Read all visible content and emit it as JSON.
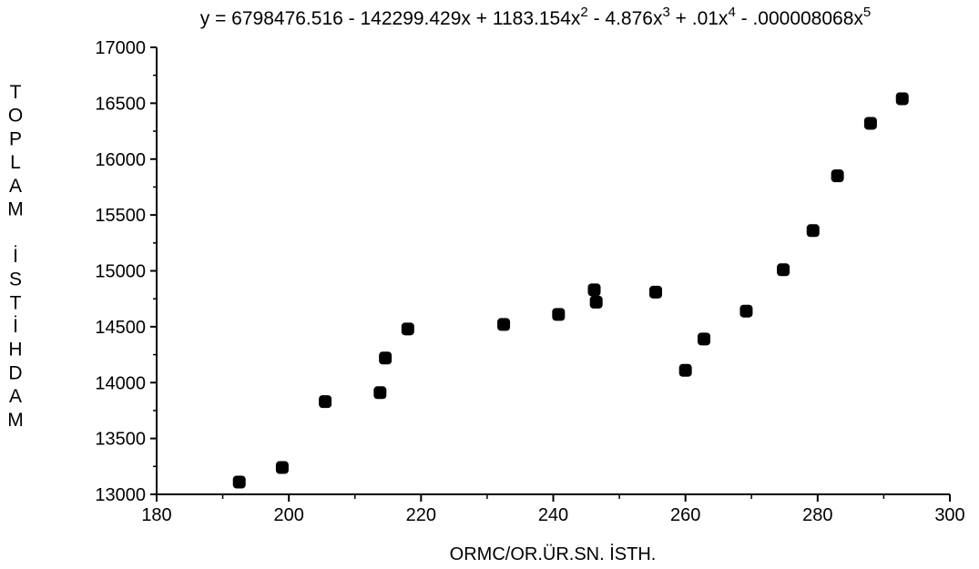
{
  "chart_data": {
    "type": "scatter",
    "title": "y = 6798476.516 - 142299.429x + 1183.154x2 - 4.876x3 + .01x4 - .000008068x5",
    "title_parts": {
      "main": "y = 6798476.516 - 142299.429x + 1183.154x",
      "p2": "2",
      "mid1": " - 4.876x",
      "p3": "3",
      "mid2": " + .01x",
      "p4": "4",
      "mid3": " - .000008068x",
      "p5": "5"
    },
    "xlabel": "ORMC/OR.ÜR.SN. İSTH.",
    "ylabel": "TOPLAM İSTİHDAM",
    "ylabel_chars": [
      "T",
      "O",
      "P",
      "L",
      "A",
      "M",
      "",
      "İ",
      "S",
      "T",
      "İ",
      "H",
      "D",
      "A",
      "M"
    ],
    "xlim": [
      180,
      300
    ],
    "ylim": [
      13000,
      17000
    ],
    "x_ticks": [
      "180",
      "200",
      "220",
      "240",
      "260",
      "280",
      "300"
    ],
    "y_ticks": [
      "13000",
      "13500",
      "14000",
      "14500",
      "15000",
      "15500",
      "16000",
      "16500",
      "17000"
    ],
    "fit": {
      "name": "",
      "type": "polynomial",
      "degree": 5,
      "x_range": [
        192,
        293
      ],
      "coefficients": [
        6798476.516,
        -142299.429,
        1183.154,
        -4.876,
        0.01,
        -8.068e-06
      ]
    },
    "points": [
      {
        "x": 192.5,
        "y": 13110
      },
      {
        "x": 199.0,
        "y": 13240
      },
      {
        "x": 205.5,
        "y": 13830
      },
      {
        "x": 213.8,
        "y": 13910
      },
      {
        "x": 214.6,
        "y": 14220
      },
      {
        "x": 218.0,
        "y": 14480
      },
      {
        "x": 232.5,
        "y": 14520
      },
      {
        "x": 240.8,
        "y": 14610
      },
      {
        "x": 246.2,
        "y": 14830
      },
      {
        "x": 246.5,
        "y": 14720
      },
      {
        "x": 255.5,
        "y": 14810
      },
      {
        "x": 260.0,
        "y": 14110
      },
      {
        "x": 262.8,
        "y": 14390
      },
      {
        "x": 269.2,
        "y": 14640
      },
      {
        "x": 274.8,
        "y": 15010
      },
      {
        "x": 279.3,
        "y": 15360
      },
      {
        "x": 283.0,
        "y": 15850
      },
      {
        "x": 288.0,
        "y": 16320
      },
      {
        "x": 292.8,
        "y": 16540
      }
    ],
    "grid": false,
    "legend": "none",
    "marker_color": "#000000",
    "line_color": "#000000"
  }
}
